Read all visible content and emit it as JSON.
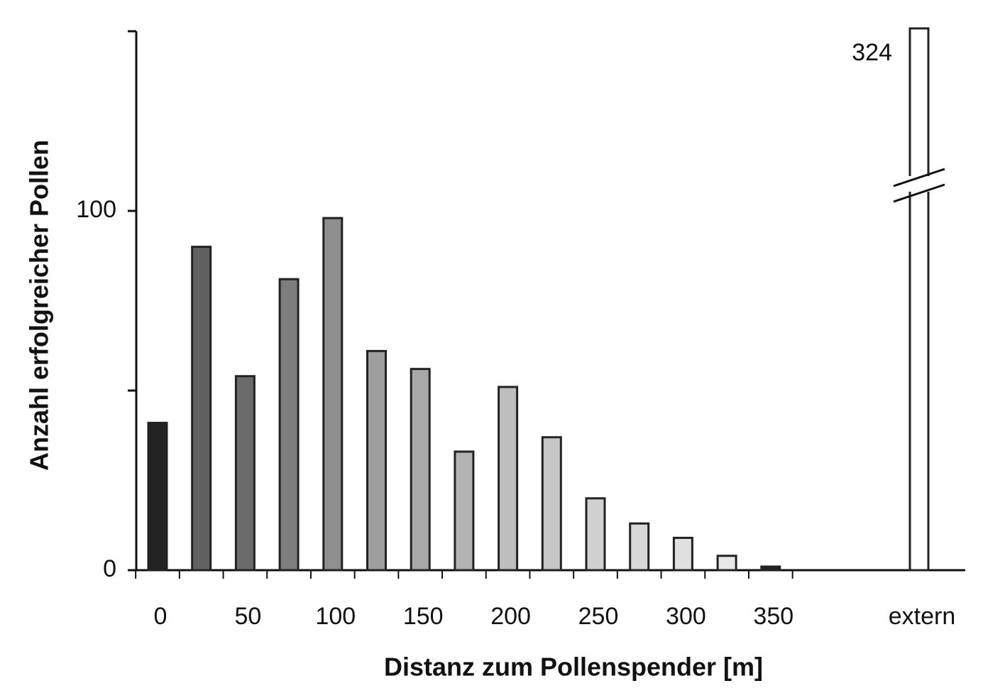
{
  "chart_data": {
    "type": "bar",
    "x_label": "Distanz zum Pollenspender [m]",
    "y_label": "Anzahl erfolgreicher Pollen",
    "categories": [
      "0",
      null,
      "50",
      null,
      "100",
      null,
      "150",
      null,
      "200",
      null,
      "250",
      null,
      "300",
      null,
      "350",
      "extern"
    ],
    "values": [
      41,
      90,
      54,
      81,
      98,
      61,
      56,
      33,
      51,
      37,
      20,
      13,
      9,
      4,
      1,
      324
    ],
    "value_labels": [
      null,
      null,
      null,
      null,
      null,
      null,
      null,
      null,
      null,
      null,
      null,
      null,
      null,
      null,
      null,
      "324"
    ],
    "colors": [
      "#222222",
      "#616161",
      "#6b6b6b",
      "#7d7d7d",
      "#8f8f8f",
      "#9e9e9e",
      "#a8a8a8",
      "#b3b3b3",
      "#bebebe",
      "#c7c7c7",
      "#d0d0d0",
      "#d7d7d7",
      "#e0e0e0",
      "#e8e8e8",
      "#222222",
      "#ffffff"
    ],
    "ylim": [
      0,
      150
    ],
    "yticks": [
      0,
      100
    ],
    "yminor_ticks": [
      50,
      150
    ],
    "axis_break": true
  }
}
